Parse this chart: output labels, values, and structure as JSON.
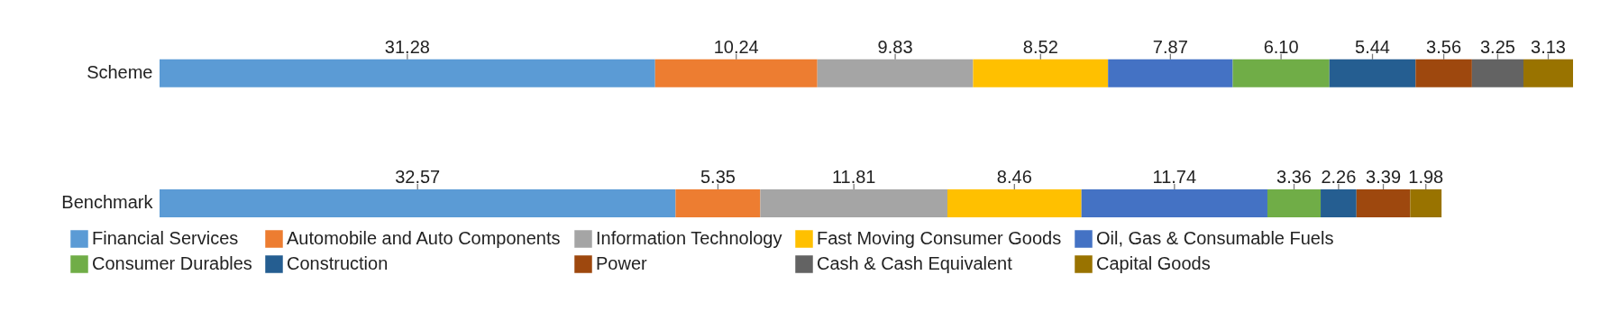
{
  "chart_data": {
    "type": "bar",
    "orientation": "horizontal",
    "stacked": true,
    "legend": "bottom",
    "grid": false,
    "categories": [
      "Scheme",
      "Benchmark"
    ],
    "series": [
      {
        "name": "Financial Services",
        "color": "#5b9bd5",
        "values": [
          31.28,
          32.57
        ],
        "value_labels": [
          "31.28",
          "32.57"
        ]
      },
      {
        "name": "Automobile and Auto Components",
        "color": "#ed7d31",
        "values": [
          10.24,
          5.35
        ],
        "value_labels": [
          "10.24",
          "5.35"
        ]
      },
      {
        "name": "Information Technology",
        "color": "#a5a5a5",
        "values": [
          9.83,
          11.81
        ],
        "value_labels": [
          "9.83",
          "11.81"
        ]
      },
      {
        "name": "Fast Moving Consumer Goods",
        "color": "#ffc000",
        "values": [
          8.52,
          8.46
        ],
        "value_labels": [
          "8.52",
          "8.46"
        ]
      },
      {
        "name": "Oil, Gas & Consumable Fuels",
        "color": "#4472c4",
        "values": [
          7.87,
          11.74
        ],
        "value_labels": [
          "7.87",
          "11.74"
        ]
      },
      {
        "name": "Consumer Durables",
        "color": "#70ad47",
        "values": [
          6.1,
          3.36
        ],
        "value_labels": [
          "6.10",
          "3.36"
        ]
      },
      {
        "name": "Construction",
        "color": "#255e91",
        "values": [
          5.44,
          2.26
        ],
        "value_labels": [
          "5.44",
          "2.26"
        ]
      },
      {
        "name": "Power",
        "color": "#9e480e",
        "values": [
          3.56,
          3.39
        ],
        "value_labels": [
          "3.56",
          "3.39"
        ]
      },
      {
        "name": "Cash & Cash Equivalent",
        "color": "#636363",
        "values": [
          3.25,
          null
        ],
        "value_labels": [
          "3.25",
          null
        ]
      },
      {
        "name": "Capital Goods",
        "color": "#997300",
        "values": [
          3.13,
          1.98
        ],
        "value_labels": [
          "3.13",
          "1.98"
        ]
      }
    ]
  }
}
